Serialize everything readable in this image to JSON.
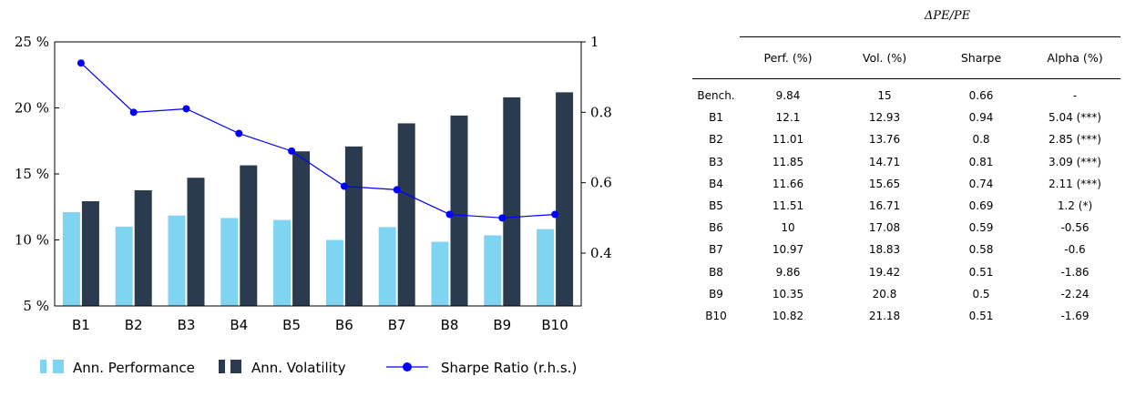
{
  "chart_data": {
    "type": "bar",
    "categories": [
      "B1",
      "B2",
      "B3",
      "B4",
      "B5",
      "B6",
      "B7",
      "B8",
      "B9",
      "B10"
    ],
    "series": [
      {
        "name": "Ann. Performance",
        "kind": "bar",
        "axis": "left",
        "color": "#7fd4f2",
        "values": [
          12.1,
          11.01,
          11.85,
          11.66,
          11.51,
          10,
          10.97,
          9.86,
          10.35,
          10.82
        ]
      },
      {
        "name": "Ann. Volatility",
        "kind": "bar",
        "axis": "left",
        "color": "#2a3b4f",
        "values": [
          12.93,
          13.76,
          14.71,
          15.65,
          16.71,
          17.08,
          18.83,
          19.42,
          20.8,
          21.18
        ]
      },
      {
        "name": "Sharpe Ratio (r.h.s.)",
        "kind": "line",
        "axis": "right",
        "color": "#0000ff",
        "values": [
          0.94,
          0.8,
          0.81,
          0.74,
          0.69,
          0.59,
          0.58,
          0.51,
          0.5,
          0.51
        ]
      }
    ],
    "y_left": {
      "range": [
        5,
        25
      ],
      "ticks": [
        5,
        10,
        15,
        20,
        25
      ],
      "tick_labels": [
        "5 %",
        "10 %",
        "15 %",
        "20 %",
        "25 %"
      ]
    },
    "y_right": {
      "range": [
        0.25,
        1
      ],
      "ticks": [
        0.4,
        0.6,
        0.8,
        1
      ],
      "tick_labels": [
        "0.4",
        "0.6",
        "0.8",
        "1"
      ]
    },
    "grid": false,
    "legend_position": "bottom"
  },
  "table": {
    "title": "ΔPE/PE",
    "columns": [
      "",
      "Perf. (%)",
      "Vol. (%)",
      "Sharpe",
      "Alpha (%)"
    ],
    "rows": [
      [
        "Bench.",
        "9.84",
        "15",
        "0.66",
        "-"
      ],
      [
        "B1",
        "12.1",
        "12.93",
        "0.94",
        "5.04 (***)"
      ],
      [
        "B2",
        "11.01",
        "13.76",
        "0.8",
        "2.85 (***)"
      ],
      [
        "B3",
        "11.85",
        "14.71",
        "0.81",
        "3.09 (***)"
      ],
      [
        "B4",
        "11.66",
        "15.65",
        "0.74",
        "2.11 (***)"
      ],
      [
        "B5",
        "11.51",
        "16.71",
        "0.69",
        "1.2 (*)"
      ],
      [
        "B6",
        "10",
        "17.08",
        "0.59",
        "-0.56"
      ],
      [
        "B7",
        "10.97",
        "18.83",
        "0.58",
        "-0.6"
      ],
      [
        "B8",
        "9.86",
        "19.42",
        "0.51",
        "-1.86"
      ],
      [
        "B9",
        "10.35",
        "20.8",
        "0.5",
        "-2.24"
      ],
      [
        "B10",
        "10.82",
        "21.18",
        "0.51",
        "-1.69"
      ]
    ]
  }
}
